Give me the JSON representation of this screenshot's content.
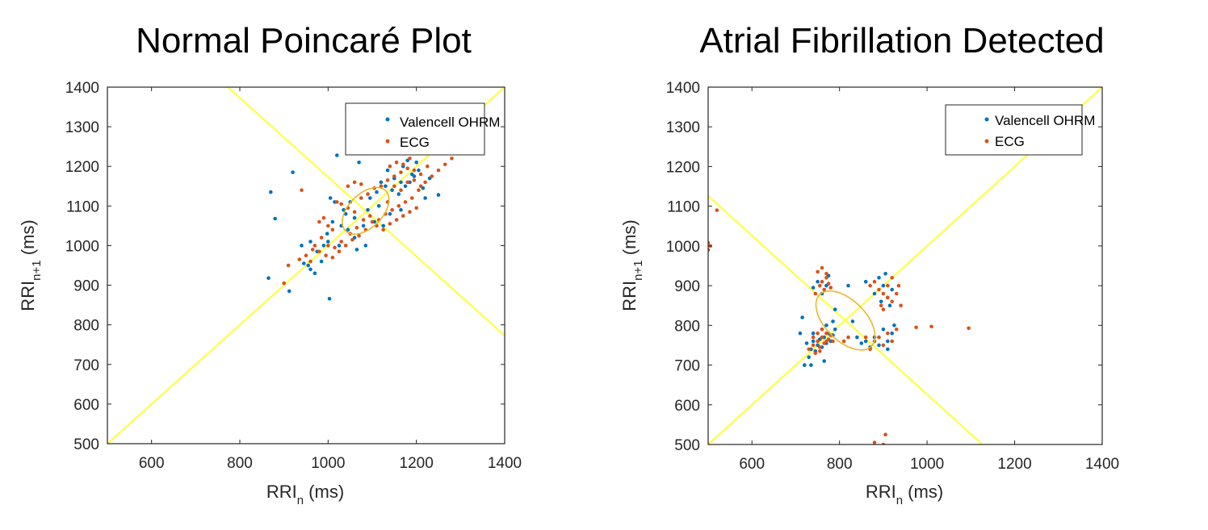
{
  "chart_data": [
    {
      "type": "scatter",
      "title": "Normal Poincaré Plot",
      "xlabel": {
        "base": "RRI",
        "sub": "n",
        "unit": " (ms)"
      },
      "ylabel": {
        "base": "RRI",
        "sub": "n+1",
        "unit": " (ms)"
      },
      "xlim": [
        500,
        1400
      ],
      "ylim": [
        500,
        1400
      ],
      "xticks": [
        600,
        800,
        1000,
        1200,
        1400
      ],
      "yticks": [
        500,
        600,
        700,
        800,
        900,
        1000,
        1100,
        1200,
        1300,
        1400
      ],
      "legend": {
        "position": "top-right",
        "entries": [
          "Valencell OHRM",
          "ECG"
        ]
      },
      "series": [
        {
          "name": "Valencell OHRM",
          "color": "#0072BD",
          "points": [
            [
              870,
              1135
            ],
            [
              880,
              1068
            ],
            [
              920,
              1185
            ],
            [
              1020,
              1228
            ],
            [
              1070,
              1210
            ],
            [
              865,
              918
            ],
            [
              912,
              885
            ],
            [
              945,
              955
            ],
            [
              960,
              940
            ],
            [
              975,
              985
            ],
            [
              990,
              1000
            ],
            [
              1003,
              866
            ],
            [
              998,
              1030
            ],
            [
              1010,
              1060
            ],
            [
              1025,
              1000
            ],
            [
              1040,
              1080
            ],
            [
              1050,
              1110
            ],
            [
              1060,
              1020
            ],
            [
              1080,
              1050
            ],
            [
              1095,
              1120
            ],
            [
              1110,
              1135
            ],
            [
              1120,
              1160
            ],
            [
              1135,
              1190
            ],
            [
              1150,
              1170
            ],
            [
              1160,
              1130
            ],
            [
              1170,
              1200
            ],
            [
              1185,
              1160
            ],
            [
              1200,
              1210
            ],
            [
              1215,
              1145
            ],
            [
              1230,
              1170
            ],
            [
              1250,
              1128
            ],
            [
              1005,
              1120
            ],
            [
              1015,
              1110
            ],
            [
              1035,
              1090
            ],
            [
              1045,
              1040
            ],
            [
              1065,
              990
            ],
            [
              1085,
              1000
            ],
            [
              1105,
              1060
            ],
            [
              1125,
              1050
            ],
            [
              1140,
              1080
            ],
            [
              1165,
              1090
            ],
            [
              1190,
              1180
            ],
            [
              985,
              960
            ],
            [
              970,
              930
            ],
            [
              955,
              950
            ],
            [
              1000,
              1010
            ],
            [
              1030,
              1050
            ],
            [
              1060,
              1070
            ],
            [
              1090,
              1090
            ],
            [
              1115,
              1100
            ],
            [
              1145,
              1140
            ],
            [
              1175,
              1150
            ],
            [
              1205,
              1190
            ],
            [
              1220,
              1120
            ],
            [
              1180,
              1215
            ],
            [
              1130,
              1150
            ],
            [
              1150,
              1170
            ],
            [
              1165,
              1160
            ],
            [
              1195,
              1175
            ],
            [
              940,
              1000
            ],
            [
              960,
              1010
            ]
          ]
        },
        {
          "name": "ECG",
          "color": "#D95319",
          "points": [
            [
              940,
              1140
            ],
            [
              900,
              905
            ],
            [
              910,
              950
            ],
            [
              935,
              965
            ],
            [
              950,
              975
            ],
            [
              965,
              990
            ],
            [
              980,
              985
            ],
            [
              995,
              975
            ],
            [
              1010,
              970
            ],
            [
              1025,
              985
            ],
            [
              1040,
              1000
            ],
            [
              1055,
              1015
            ],
            [
              1070,
              1025
            ],
            [
              1085,
              1040
            ],
            [
              1100,
              1060
            ],
            [
              1115,
              1065
            ],
            [
              1130,
              1080
            ],
            [
              1145,
              1090
            ],
            [
              1160,
              1100
            ],
            [
              1175,
              1110
            ],
            [
              1190,
              1120
            ],
            [
              1205,
              1140
            ],
            [
              1220,
              1160
            ],
            [
              1235,
              1175
            ],
            [
              1250,
              1190
            ],
            [
              1265,
              1205
            ],
            [
              1280,
              1220
            ],
            [
              980,
              1060
            ],
            [
              990,
              1070
            ],
            [
              1000,
              1050
            ],
            [
              1010,
              1040
            ],
            [
              1020,
              1110
            ],
            [
              1030,
              1105
            ],
            [
              1045,
              1095
            ],
            [
              1060,
              1085
            ],
            [
              1075,
              1120
            ],
            [
              1090,
              1130
            ],
            [
              1105,
              1145
            ],
            [
              1120,
              1150
            ],
            [
              1135,
              1165
            ],
            [
              1150,
              1175
            ],
            [
              1165,
              1185
            ],
            [
              1180,
              1195
            ],
            [
              1195,
              1190
            ],
            [
              1210,
              1180
            ],
            [
              1225,
              1200
            ],
            [
              1110,
              1050
            ],
            [
              1125,
              1040
            ],
            [
              1140,
              1055
            ],
            [
              1155,
              1065
            ],
            [
              1170,
              1075
            ],
            [
              1185,
              1085
            ],
            [
              1200,
              1095
            ],
            [
              960,
              960
            ],
            [
              970,
              1000
            ],
            [
              985,
              1020
            ],
            [
              1000,
              1000
            ],
            [
              1015,
              995
            ],
            [
              1030,
              1010
            ],
            [
              1050,
              1030
            ],
            [
              1065,
              1045
            ],
            [
              1080,
              1065
            ],
            [
              1095,
              1075
            ],
            [
              1135,
              1110
            ],
            [
              1150,
              1150
            ],
            [
              1165,
              1140
            ],
            [
              1180,
              1160
            ],
            [
              1195,
              1165
            ],
            [
              1210,
              1150
            ],
            [
              1140,
              1200
            ],
            [
              1155,
              1210
            ],
            [
              1170,
              1205
            ],
            [
              1185,
              1220
            ],
            [
              1045,
              1150
            ],
            [
              1060,
              1160
            ],
            [
              1075,
              1155
            ]
          ]
        }
      ]
    },
    {
      "type": "scatter",
      "title": "Atrial Fibrillation Detected",
      "xlabel": {
        "base": "RRI",
        "sub": "n",
        "unit": " (ms)"
      },
      "ylabel": {
        "base": "RRI",
        "sub": "n+1",
        "unit": " (ms)"
      },
      "xlim": [
        500,
        1400
      ],
      "ylim": [
        500,
        1400
      ],
      "xticks": [
        600,
        800,
        1000,
        1200,
        1400
      ],
      "yticks": [
        500,
        600,
        700,
        800,
        900,
        1000,
        1100,
        1200,
        1300,
        1400
      ],
      "legend": {
        "position": "top-right",
        "entries": [
          "Valencell OHRM",
          "ECG"
        ]
      },
      "series": [
        {
          "name": "Valencell OHRM",
          "color": "#0072BD",
          "points": [
            [
              720,
              700
            ],
            [
              730,
              720
            ],
            [
              735,
              740
            ],
            [
              740,
              760
            ],
            [
              745,
              735
            ],
            [
              750,
              750
            ],
            [
              755,
              765
            ],
            [
              760,
              745
            ],
            [
              765,
              770
            ],
            [
              770,
              755
            ],
            [
              775,
              780
            ],
            [
              780,
              760
            ],
            [
              785,
              775
            ],
            [
              790,
              790
            ],
            [
              725,
              755
            ],
            [
              740,
              780
            ],
            [
              760,
              790
            ],
            [
              770,
              800
            ],
            [
              785,
              810
            ],
            [
              760,
              880
            ],
            [
              770,
              900
            ],
            [
              750,
              910
            ],
            [
              775,
              925
            ],
            [
              740,
              895
            ],
            [
              860,
              910
            ],
            [
              880,
              880
            ],
            [
              890,
              920
            ],
            [
              900,
              900
            ],
            [
              910,
              870
            ],
            [
              920,
              890
            ],
            [
              905,
              930
            ],
            [
              895,
              860
            ],
            [
              915,
              850
            ],
            [
              880,
              770
            ],
            [
              890,
              750
            ],
            [
              900,
              790
            ],
            [
              910,
              760
            ],
            [
              920,
              780
            ],
            [
              870,
              745
            ],
            [
              860,
              760
            ],
            [
              710,
              780
            ],
            [
              715,
              820
            ],
            [
              830,
              810
            ],
            [
              840,
              770
            ],
            [
              850,
              755
            ],
            [
              790,
              840
            ],
            [
              820,
              900
            ],
            [
              735,
              700
            ],
            [
              765,
              710
            ],
            [
              910,
              740
            ],
            [
              925,
              800
            ]
          ]
        },
        {
          "name": "ECG",
          "color": "#D95319",
          "points": [
            [
              505,
              1000
            ],
            [
              500,
              990
            ],
            [
              500,
              1008
            ],
            [
              520,
              1090
            ],
            [
              730,
              740
            ],
            [
              740,
              750
            ],
            [
              745,
              730
            ],
            [
              750,
              760
            ],
            [
              755,
              745
            ],
            [
              760,
              770
            ],
            [
              765,
              755
            ],
            [
              770,
              780
            ],
            [
              775,
              765
            ],
            [
              780,
              775
            ],
            [
              785,
              760
            ],
            [
              750,
              780
            ],
            [
              760,
              790
            ],
            [
              770,
              760
            ],
            [
              740,
              770
            ],
            [
              755,
              735
            ],
            [
              745,
              880
            ],
            [
              755,
              900
            ],
            [
              760,
              910
            ],
            [
              765,
              890
            ],
            [
              770,
              920
            ],
            [
              775,
              905
            ],
            [
              780,
              895
            ],
            [
              750,
              935
            ],
            [
              760,
              945
            ],
            [
              770,
              930
            ],
            [
              870,
              900
            ],
            [
              880,
              910
            ],
            [
              890,
              890
            ],
            [
              900,
              880
            ],
            [
              910,
              870
            ],
            [
              920,
              860
            ],
            [
              930,
              880
            ],
            [
              900,
              840
            ],
            [
              910,
              900
            ],
            [
              920,
              920
            ],
            [
              895,
              850
            ],
            [
              880,
              760
            ],
            [
              890,
              770
            ],
            [
              900,
              750
            ],
            [
              910,
              780
            ],
            [
              920,
              760
            ],
            [
              870,
              740
            ],
            [
              860,
              770
            ],
            [
              930,
              790
            ],
            [
              975,
              795
            ],
            [
              1010,
              797
            ],
            [
              1095,
              793
            ],
            [
              880,
              505
            ],
            [
              900,
              500
            ],
            [
              905,
              525
            ],
            [
              820,
              770
            ],
            [
              810,
              760
            ],
            [
              935,
              900
            ],
            [
              940,
              850
            ]
          ]
        }
      ]
    }
  ]
}
